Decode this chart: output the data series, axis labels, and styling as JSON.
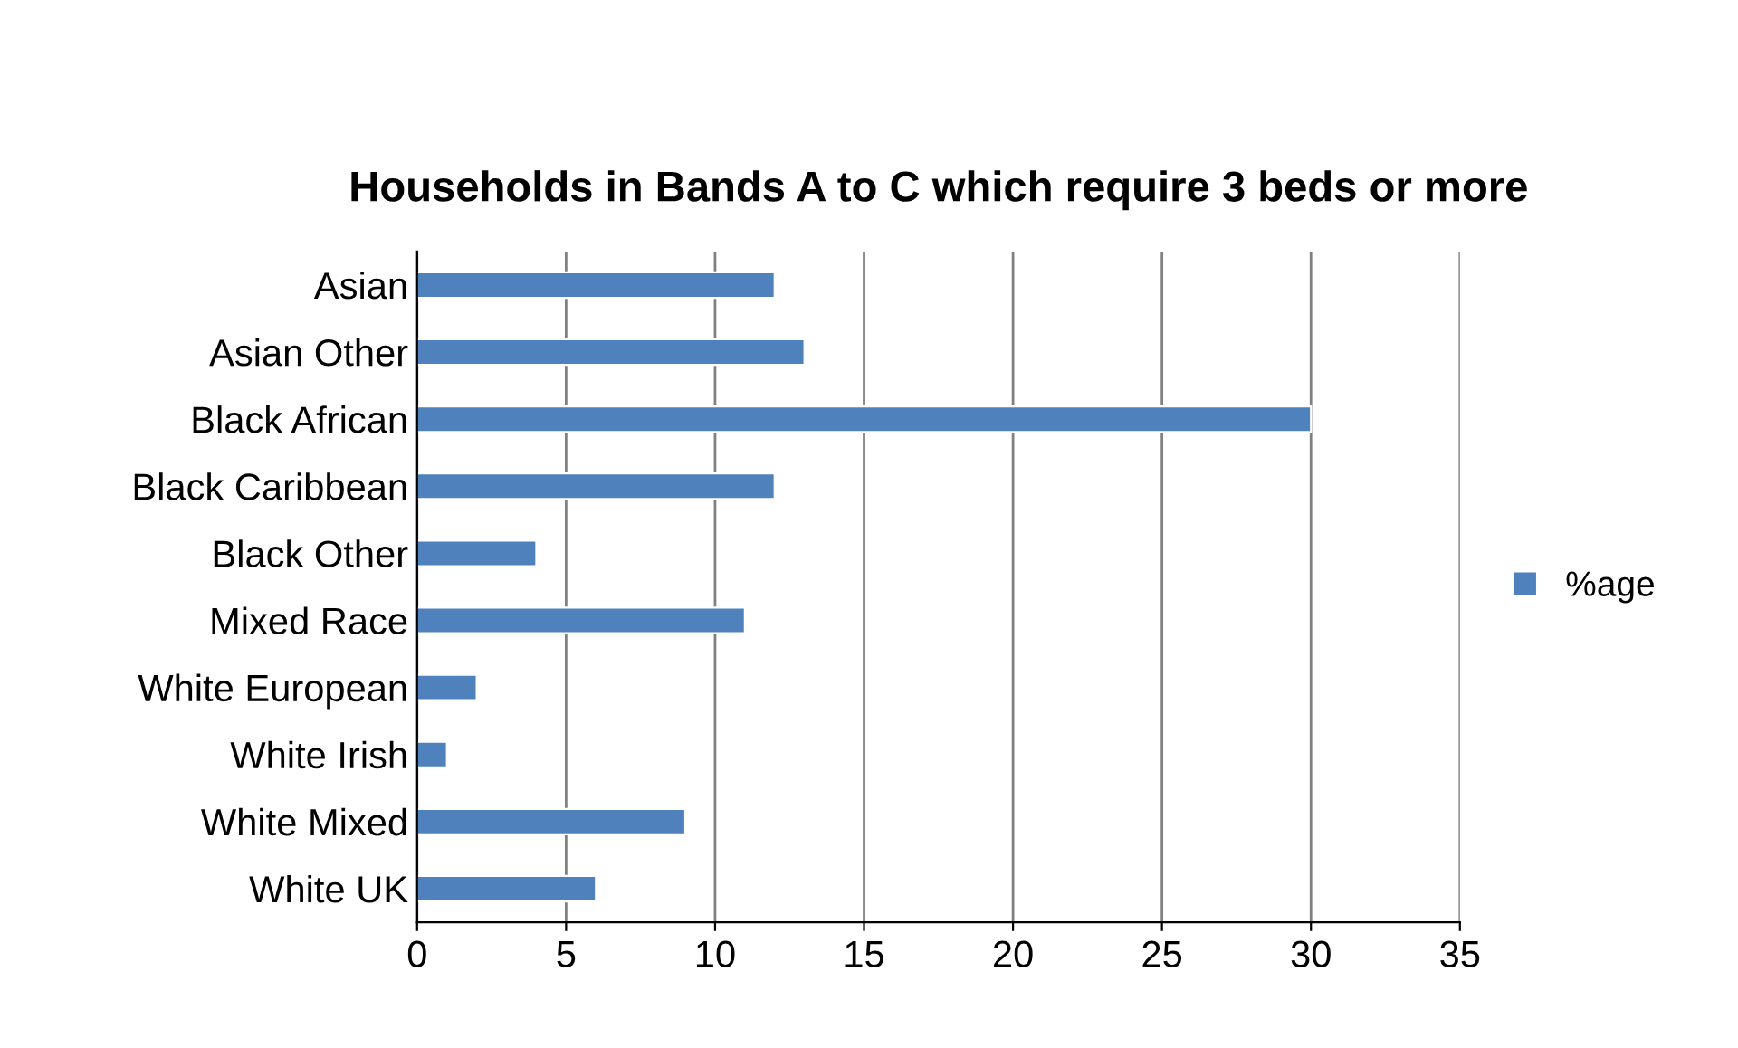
{
  "chart_data": {
    "type": "bar",
    "orientation": "horizontal",
    "title": "Households in Bands A to C which require 3 beds or more",
    "categories": [
      "Asian",
      "Asian Other",
      "Black African",
      "Black Caribbean",
      "Black Other",
      "Mixed Race",
      "White European",
      "White Irish",
      "White Mixed",
      "White UK"
    ],
    "series": [
      {
        "name": "%age",
        "color": "#4f81bd",
        "values": [
          12,
          13,
          30,
          12,
          4,
          11,
          2,
          1,
          9,
          6
        ]
      }
    ],
    "xlim": [
      0,
      35
    ],
    "xticks": [
      0,
      5,
      10,
      15,
      20,
      25,
      30,
      35
    ],
    "grid": "x",
    "legend": "right"
  }
}
